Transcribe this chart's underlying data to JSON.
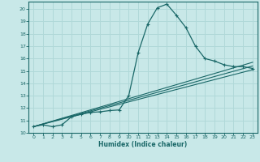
{
  "bg_color": "#c8e8e8",
  "grid_color": "#b0d8d8",
  "line_color": "#1a6868",
  "xlabel": "Humidex (Indice chaleur)",
  "xlim": [
    -0.5,
    23.5
  ],
  "ylim": [
    10.0,
    20.6
  ],
  "yticks": [
    10,
    11,
    12,
    13,
    14,
    15,
    16,
    17,
    18,
    19,
    20
  ],
  "xticks": [
    0,
    1,
    2,
    3,
    4,
    5,
    6,
    7,
    8,
    9,
    10,
    11,
    12,
    13,
    14,
    15,
    16,
    17,
    18,
    19,
    20,
    21,
    22,
    23
  ],
  "curve1_x": [
    0,
    1,
    2,
    3,
    4,
    5,
    6,
    7,
    8,
    9,
    10,
    11,
    12,
    13,
    14,
    15,
    16,
    17,
    18,
    19,
    20,
    21,
    22,
    23
  ],
  "curve1_y": [
    10.5,
    10.65,
    10.5,
    10.65,
    11.3,
    11.5,
    11.65,
    11.7,
    11.8,
    11.85,
    13.0,
    16.5,
    18.8,
    20.1,
    20.4,
    19.5,
    18.5,
    17.0,
    16.0,
    15.8,
    15.5,
    15.35,
    15.35,
    15.2
  ],
  "line1_x": [
    0,
    23
  ],
  "line1_y": [
    10.5,
    15.4
  ],
  "line2_x": [
    0,
    23
  ],
  "line2_y": [
    10.5,
    15.1
  ],
  "line3_x": [
    0,
    23
  ],
  "line3_y": [
    10.5,
    15.7
  ],
  "marker_x": [
    0,
    1,
    2,
    3,
    4,
    5,
    6,
    7,
    8,
    9,
    10,
    11,
    12,
    13,
    14,
    15,
    16,
    17,
    18,
    19,
    20,
    21,
    22,
    23
  ],
  "marker_y": [
    10.5,
    10.65,
    10.5,
    10.65,
    11.3,
    11.5,
    11.65,
    11.7,
    11.8,
    11.85,
    13.0,
    16.5,
    18.8,
    20.1,
    20.4,
    19.5,
    18.5,
    17.0,
    16.0,
    15.8,
    15.5,
    15.35,
    15.35,
    15.2
  ]
}
